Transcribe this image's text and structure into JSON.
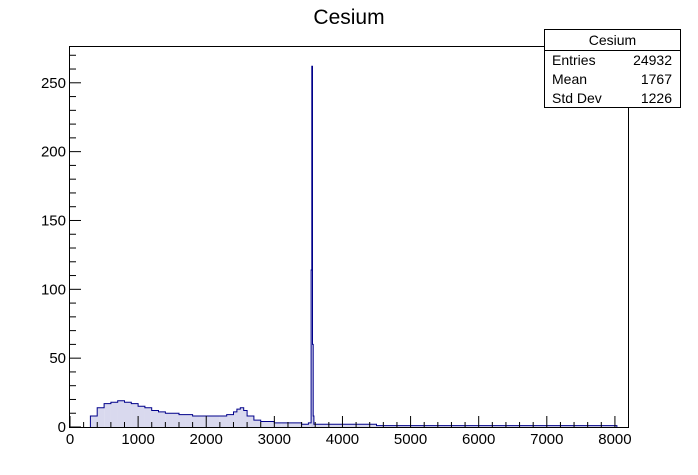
{
  "chart_data": {
    "type": "bar",
    "title": "Cesium",
    "xlabel": "",
    "ylabel": "",
    "xlim": [
      0,
      8192
    ],
    "ylim": [
      0,
      276
    ],
    "grid": false,
    "x_ticks": [
      0,
      1000,
      2000,
      3000,
      4000,
      5000,
      6000,
      7000,
      8000
    ],
    "y_ticks": [
      0,
      50,
      100,
      150,
      200,
      250
    ],
    "series": [
      {
        "color": "#00008b",
        "x": [
          300,
          400,
          500,
          600,
          700,
          800,
          900,
          1000,
          1100,
          1200,
          1300,
          1400,
          1500,
          1600,
          1700,
          1800,
          1900,
          2000,
          2100,
          2200,
          2300,
          2400,
          2450,
          2500,
          2550,
          2600,
          2700,
          2800,
          2900,
          3000,
          3100,
          3200,
          3300,
          3400,
          3500,
          3540,
          3550,
          3560,
          3570,
          3580,
          3600,
          3700,
          3800,
          3900,
          4000,
          4500,
          5000,
          5500,
          6000,
          6500,
          7000,
          7500,
          8000
        ],
        "values": [
          8,
          14,
          17,
          18,
          19,
          18,
          17,
          15,
          14,
          12,
          11,
          10,
          10,
          9,
          9,
          8,
          8,
          8,
          8,
          8,
          9,
          11,
          13,
          14,
          12,
          8,
          5,
          4,
          4,
          3,
          3,
          3,
          3,
          2,
          3,
          114,
          262,
          60,
          8,
          2,
          2,
          2,
          2,
          2,
          2,
          1,
          1,
          1,
          1,
          1,
          1,
          1,
          1
        ]
      }
    ],
    "stats": {
      "title": "Cesium",
      "rows": [
        {
          "label": "Entries",
          "value": "24932"
        },
        {
          "label": "Mean",
          "value": "1767"
        },
        {
          "label": "Std Dev",
          "value": "1226"
        }
      ]
    }
  }
}
